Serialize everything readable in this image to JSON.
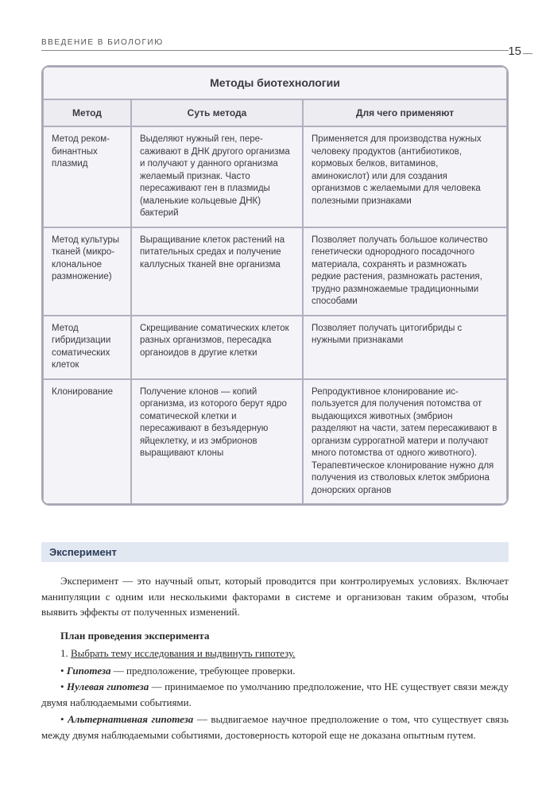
{
  "running_head": "ВВЕДЕНИЕ В БИОЛОГИЮ",
  "page_number": "15",
  "table": {
    "title": "Методы биотехнологии",
    "headers": {
      "c1": "Метод",
      "c2": "Суть метода",
      "c3": "Для чего применяют"
    },
    "rows": [
      {
        "c1": "Метод реком­бинантных плазмид",
        "c2": "Выделяют нужный ген, пере­саживают в ДНК другого организма и получают у дан­ного организма желаемый признак. Часто пересаживают ген в плазмиды (маленькие кольцевые ДНК) бактерий",
        "c3": "Применяется для производства нужных человеку продуктов (антибио­тиков, кормовых белков, витаминов, аминокислот) или для создания организмов с желаемыми для человека полезными признаками"
      },
      {
        "c1": "Метод культуры тканей (микро­клональное размножение)",
        "c2": "Выращивание клеток растений на питательных средах и по­лучение каллусных тканей вне организма",
        "c3": "Позволяет получать большое количест­во генетически однородного посадоч­ного материала, сохранять и размно­жать редкие растения, размножать растения, трудно размножаемые тради­ционными способами"
      },
      {
        "c1": "Метод гибридизации соматических клеток",
        "c2": "Скрещивание соматических клеток разных организмов, пересадка органоидов в другие клетки",
        "c3": "Позволяет получать цитогибриды с нужными признаками"
      },
      {
        "c1": "Клонирование",
        "c2": "Получение клонов — копий организма, из которого берут ядро соматической клетки и пересаживают в безъядерную яйцеклетку, и из эмбрионов выращивают клоны",
        "c3": "Репродуктивное клонирование ис­пользуется для получения потомства от выдающихся животных (эмбрион разделяют на части, затем переса­живают в организм суррогатной матери и получают много потомства от одного животного). Терапевтическое клонирование нужно для получения из стволовых клеток эмбриона донорских органов"
      }
    ]
  },
  "section_title": "Эксперимент",
  "para_intro": "Эксперимент — это научный опыт, который проводится при контролируе­мых условиях. Включает манипуляции с одним или несколькими факторами в системе и организован таким образом, чтобы выявить эффекты от полученных изменений.",
  "plan_title": "План проведения эксперимента",
  "plan_item_1_num": "1.  ",
  "plan_item_1": "Выбрать тему исследования и выдвинуть гипотезу.",
  "b1_term": "Гипотеза",
  "b1_rest": " — предположение, требующее проверки.",
  "b2_term": "Нулевая гипотеза",
  "b2_rest": " — принимаемое по умолчанию предположение, что НЕ существует связи между двумя наблюдаемыми событиями.",
  "b3_term": "Альтернативная гипотеза",
  "b3_rest": " — выдвигаемое научное предположение о том, что существует связь между двумя наблюдаемыми событиями, достовер­ность которой еще не доказана опытным путем.",
  "bullet": "• "
}
